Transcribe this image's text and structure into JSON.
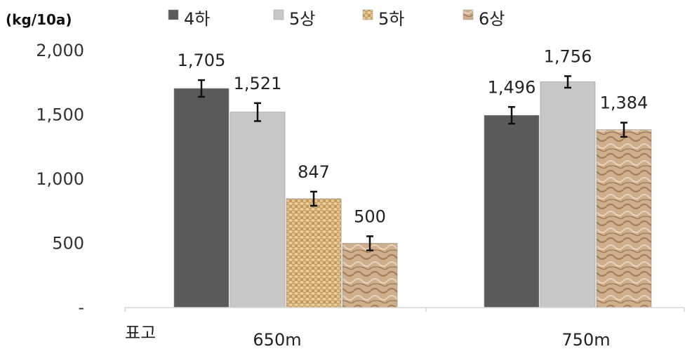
{
  "chart_data": {
    "type": "bar",
    "unit_label": "(kg/10a)",
    "xaxis_title": "표고",
    "categories": [
      "650m",
      "750m"
    ],
    "series": [
      {
        "name": "4하",
        "color": "#5a5a5a",
        "pattern": "solid",
        "values": [
          1705,
          1496
        ],
        "errors": [
          65,
          65
        ]
      },
      {
        "name": "5상",
        "color": "#c8c8c8",
        "pattern": "solid",
        "values": [
          1521,
          1756
        ],
        "errors": [
          70,
          45
        ]
      },
      {
        "name": "5하",
        "color": "#d9b882",
        "pattern": "weave",
        "values": [
          847,
          null
        ],
        "errors": [
          55,
          null
        ]
      },
      {
        "name": "6상",
        "color": "#c9a27f",
        "pattern": "marble",
        "values": [
          500,
          1384
        ],
        "errors": [
          55,
          55
        ]
      }
    ],
    "ylim": [
      0,
      2000
    ],
    "yticks": [
      0,
      500,
      1000,
      1500,
      2000
    ],
    "ytick_labels": [
      "-",
      "500",
      "1,000",
      "1,500",
      "2,000"
    ],
    "data_labels": [
      [
        "1,705",
        "1,496"
      ],
      [
        "1,521",
        "1,756"
      ],
      [
        "847",
        ""
      ],
      [
        "500",
        "1,384"
      ]
    ],
    "grid": false,
    "legend_position": "top"
  }
}
